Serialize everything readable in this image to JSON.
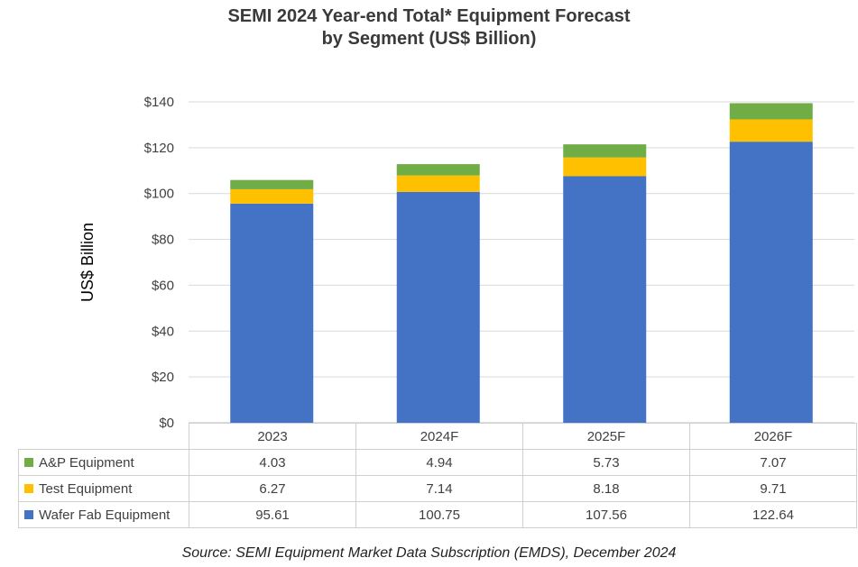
{
  "title_line1": "SEMI 2024 Year-end Total* Equipment Forecast",
  "title_line2": "by Segment (US$ Billion)",
  "source": "Source: SEMI Equipment Market Data Subscription (EMDS), December 2024",
  "chart_data": {
    "type": "bar",
    "stacked": true,
    "categories": [
      "2023",
      "2024F",
      "2025F",
      "2026F"
    ],
    "series": [
      {
        "name": "A&P Equipment",
        "values": [
          4.03,
          4.94,
          5.73,
          7.07
        ],
        "color": "#70ad47"
      },
      {
        "name": "Test Equipment",
        "values": [
          6.27,
          7.14,
          8.18,
          9.71
        ],
        "color": "#ffc000"
      },
      {
        "name": "Wafer Fab Equipment",
        "values": [
          95.61,
          100.75,
          107.56,
          122.64
        ],
        "color": "#4472c4"
      }
    ],
    "ylabel": "US$ Billion",
    "ylim": [
      0,
      140
    ],
    "yticks": [
      "$0",
      "$20",
      "$40",
      "$60",
      "$80",
      "$100",
      "$120",
      "$140"
    ],
    "grid": true,
    "legend": "data table below chart"
  }
}
